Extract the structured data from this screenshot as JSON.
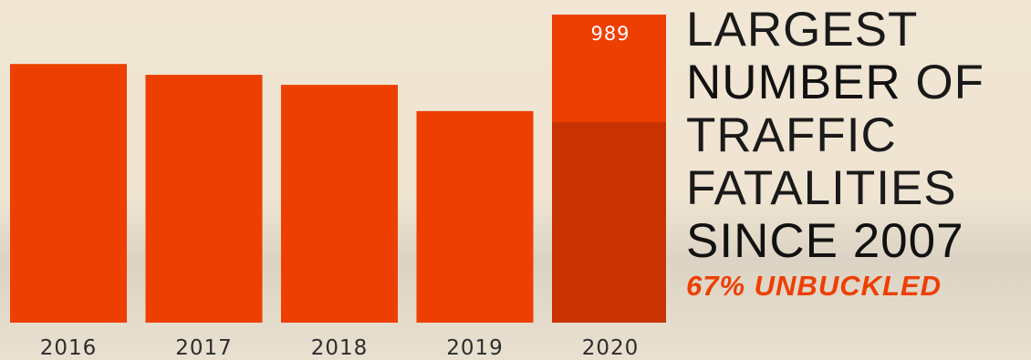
{
  "chart_data": {
    "type": "bar",
    "categories": [
      "2016",
      "2017",
      "2018",
      "2019",
      "2020"
    ],
    "values": [
      925,
      911,
      898,
      864,
      989
    ],
    "data_labels": [
      "",
      "",
      "",
      "",
      "989"
    ],
    "highlight_category": "2020",
    "ylim": [
      590,
      989
    ],
    "grid": false,
    "title": "",
    "xlabel": "",
    "ylabel": ""
  },
  "headline": {
    "line1": "LARGEST",
    "line2_bold": "NUMBER",
    "line2_light": " OF",
    "line3": "TRAFFIC",
    "line4": "FATALITIES",
    "line5": "SINCE 2007",
    "emphasis": "67% UNBUCKLED"
  },
  "colors": {
    "bar": "#ee3f02",
    "bar_shade": "#c93302",
    "emphasis": "#ee3f02",
    "text": "#111111"
  }
}
